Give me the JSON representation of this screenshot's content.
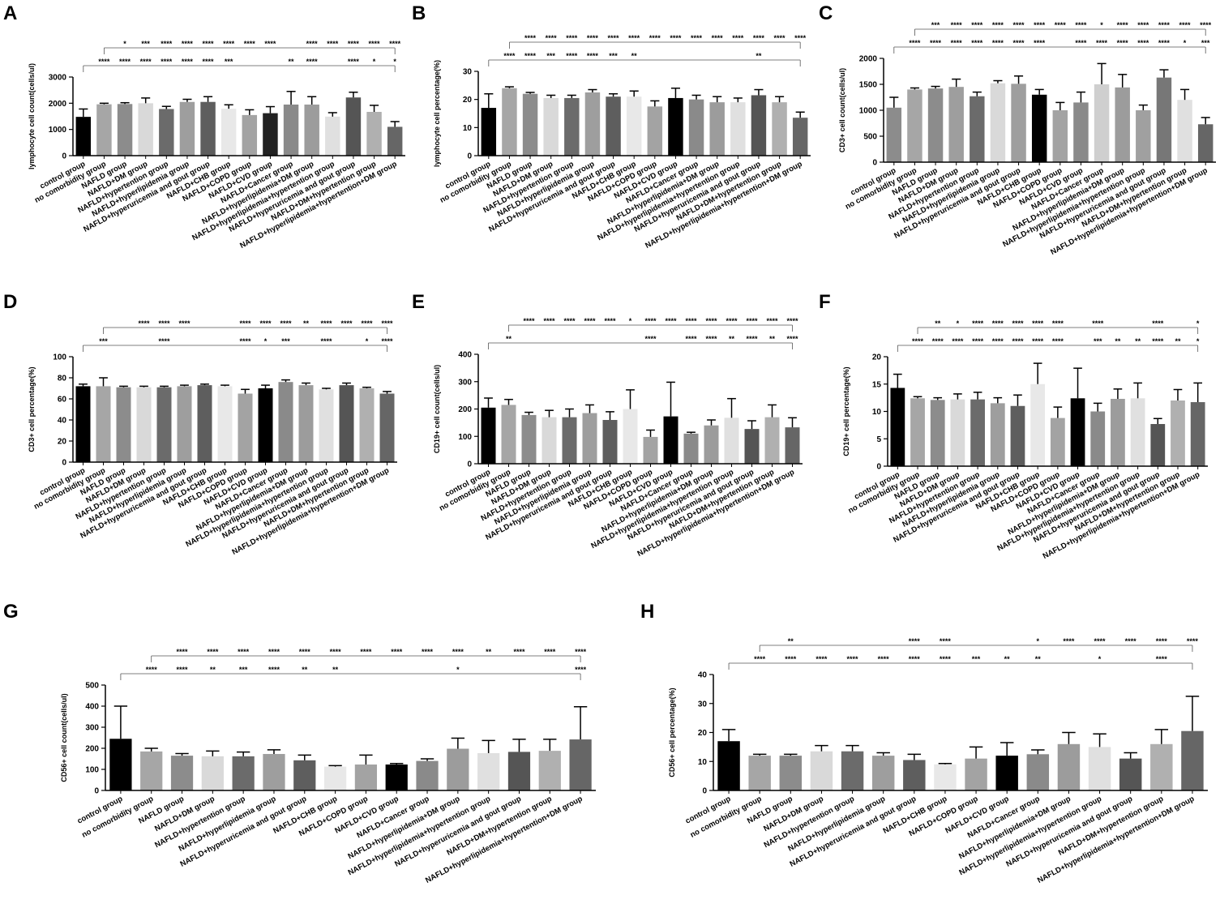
{
  "chart_data": [
    {
      "type": "bar",
      "panel": "A",
      "y_label": "lymphocyte cell count(cells/ul)",
      "categories": [
        "control group",
        "no comorbidity group",
        "NAFLD group",
        "NAFLD+DM group",
        "NAFLD+hypertention group",
        "NAFLD+hyperlipidemia group",
        "NAFLD+hyperuricemia and gout group",
        "NAFLD+CHB group",
        "NAFLD+COPD group",
        "NAFLD+CVD group",
        "NAFLD+Cancer group",
        "NAFLD+hyperlipidemia+DM group",
        "NAFLD+hyperlipidemia+hypertention group",
        "NAFLD+hyperuricemia and gout group",
        "NAFLD+DM+hypertention group",
        "NAFLD+hyperlipidemia+hypertention+DM group"
      ],
      "values": [
        1480,
        1960,
        1970,
        2000,
        1780,
        2050,
        2050,
        1790,
        1550,
        1620,
        1950,
        1950,
        1490,
        2220,
        1670,
        1100
      ],
      "errors": [
        300,
        40,
        50,
        200,
        100,
        100,
        200,
        150,
        200,
        250,
        500,
        300,
        150,
        200,
        250,
        200
      ],
      "colors": [
        "#000000",
        "#a6a6a6",
        "#8c8c8c",
        "#d9d9d9",
        "#6b6b6b",
        "#9e9e9e",
        "#5e5e5e",
        "#e8e8e8",
        "#a3a3a3",
        "#222222",
        "#8a8a8a",
        "#9c9c9c",
        "#e0e0e0",
        "#555555",
        "#b0b0b0",
        "#666666"
      ],
      "ylim": [
        0,
        3000
      ],
      "yticks": [
        0,
        1000,
        2000,
        3000
      ],
      "significance": [
        [
          null,
          "****",
          "****",
          "****",
          "****",
          "****",
          "****",
          "***",
          null,
          null,
          "**",
          "****",
          null,
          "****",
          "*",
          "*"
        ],
        [
          null,
          null,
          "*",
          "***",
          "****",
          "****",
          "****",
          "****",
          "****",
          "****",
          null,
          "****",
          "****",
          "****",
          "****",
          "****"
        ]
      ]
    },
    {
      "type": "bar",
      "panel": "B",
      "y_label": "lymphocyte cell percentage(%)",
      "categories": [
        "control group",
        "no comorbidity group",
        "NAFLD group",
        "NAFLD+DM group",
        "NAFLD+hypertention group",
        "NAFLD+hyperlipidemia group",
        "NAFLD+hyperuricemia and gout group",
        "NAFLD+CHB group",
        "NAFLD+COPD group",
        "NAFLD+CVD group",
        "NAFLD+Cancer group",
        "NAFLD+hyperlipidemia+DM group",
        "NAFLD+hyperlipidemia+hypertention group",
        "NAFLD+hyperuricemia and gout group",
        "NAFLD+DM+hypertention group",
        "NAFLD+hyperlipidemia+hypertention+DM group"
      ],
      "values": [
        17,
        24,
        22,
        20.5,
        20.5,
        22.5,
        21,
        21,
        17.5,
        20.5,
        20,
        19,
        19,
        21.5,
        19,
        13.5
      ],
      "errors": [
        5,
        0.5,
        0.5,
        1,
        1,
        1,
        1,
        2,
        2,
        3.5,
        1.5,
        2,
        1.5,
        2,
        2,
        2
      ],
      "colors": [
        "#000000",
        "#a6a6a6",
        "#8c8c8c",
        "#d9d9d9",
        "#6b6b6b",
        "#9e9e9e",
        "#5e5e5e",
        "#e8e8e8",
        "#a3a3a3",
        "#000000",
        "#8a8a8a",
        "#9c9c9c",
        "#e0e0e0",
        "#555555",
        "#b0b0b0",
        "#666666"
      ],
      "ylim": [
        0,
        30
      ],
      "yticks": [
        0,
        10,
        20,
        30
      ],
      "significance": [
        [
          null,
          "****",
          "****",
          "***",
          "****",
          "****",
          "***",
          "**",
          null,
          null,
          null,
          null,
          null,
          "**",
          null,
          null
        ],
        [
          null,
          null,
          "****",
          "****",
          "****",
          "****",
          "****",
          "****",
          "****",
          "****",
          "****",
          "****",
          "****",
          "****",
          "****",
          "****"
        ]
      ]
    },
    {
      "type": "bar",
      "panel": "C",
      "y_label": "CD3+ cell count(cells/ul)",
      "categories": [
        "control group",
        "no comorbidity group",
        "NAFLD group",
        "NAFLD+DM group",
        "NAFLD+hypertention group",
        "NAFLD+hyperlipidemia group",
        "NAFLD+hyperuricemia and gout group",
        "NAFLD+CHB group",
        "NAFLD+COPD group",
        "NAFLD+CVD group",
        "NAFLD+Cancer group",
        "NAFLD+hyperlipidemia+DM group",
        "NAFLD+hyperlipidemia+hypertention group",
        "NAFLD+hyperuricemia and gout group",
        "NAFLD+DM+hypertention group",
        "NAFLD+hyperlipidemia+hypertention+DM group"
      ],
      "values": [
        1050,
        1400,
        1420,
        1450,
        1270,
        1520,
        1510,
        1300,
        1000,
        1150,
        1500,
        1440,
        1000,
        1630,
        1200,
        730
      ],
      "errors": [
        200,
        30,
        40,
        150,
        80,
        50,
        150,
        100,
        150,
        200,
        400,
        250,
        100,
        150,
        200,
        130
      ],
      "colors": [
        "#8c8c8c",
        "#a6a6a6",
        "#8c8c8c",
        "#9e9e9e",
        "#6b6b6b",
        "#d9d9d9",
        "#9e9e9e",
        "#000000",
        "#a3a3a3",
        "#8a8a8a",
        "#cfcfcf",
        "#9c9c9c",
        "#a0a0a0",
        "#777777",
        "#e0e0e0",
        "#666666"
      ],
      "ylim": [
        0,
        2000
      ],
      "yticks": [
        0,
        500,
        1000,
        1500,
        2000
      ],
      "significance": [
        [
          null,
          "****",
          "****",
          "****",
          "****",
          "****",
          "****",
          "****",
          null,
          "****",
          "****",
          "****",
          "****",
          "****",
          "*",
          "***"
        ],
        [
          null,
          null,
          "***",
          "****",
          "****",
          "****",
          "****",
          "****",
          "****",
          "****",
          "*",
          "****",
          "****",
          "****",
          "****",
          "****"
        ]
      ]
    },
    {
      "type": "bar",
      "panel": "D",
      "y_label": "CD3+ cell percentage(%)",
      "categories": [
        "control group",
        "no comorbidity group",
        "NAFLD group",
        "NAFLD+DM group",
        "NAFLD+hypertention group",
        "NAFLD+hyperlipidemia group",
        "NAFLD+hyperuricemia and gout group",
        "NAFLD+CHB group",
        "NAFLD+COPD group",
        "NAFLD+CVD group",
        "NAFLD+Cancer group",
        "NAFLD+hyperlipidemia+DM group",
        "NAFLD+hyperlipidemia+hypertention group",
        "NAFLD+hyperuricemia and gout group",
        "NAFLD+DM+hypertention group",
        "NAFLD+hyperlipidemia+hypertention+DM group"
      ],
      "values": [
        72,
        72,
        71,
        71,
        71,
        72,
        73,
        72,
        65,
        70,
        76,
        73,
        69,
        73,
        70,
        65
      ],
      "errors": [
        2,
        8,
        1,
        1,
        1,
        1,
        1,
        1,
        4,
        3,
        2,
        2,
        1,
        2,
        1,
        2
      ],
      "colors": [
        "#000000",
        "#a6a6a6",
        "#8c8c8c",
        "#d9d9d9",
        "#6b6b6b",
        "#9e9e9e",
        "#5e5e5e",
        "#e8e8e8",
        "#a3a3a3",
        "#000000",
        "#8a8a8a",
        "#9c9c9c",
        "#e0e0e0",
        "#555555",
        "#b0b0b0",
        "#666666"
      ],
      "ylim": [
        0,
        100
      ],
      "yticks": [
        0,
        20,
        40,
        60,
        80,
        100
      ],
      "significance": [
        [
          null,
          "***",
          null,
          null,
          "****",
          null,
          null,
          null,
          "****",
          "*",
          "***",
          null,
          "****",
          null,
          "*",
          "****"
        ],
        [
          null,
          null,
          null,
          "****",
          "****",
          "****",
          null,
          null,
          "****",
          "****",
          "****",
          "**",
          "****",
          "****",
          "****",
          "****"
        ]
      ]
    },
    {
      "type": "bar",
      "panel": "E",
      "y_label": "CD19+ cell count(cells/ul)",
      "categories": [
        "control group",
        "no comorbidity group",
        "NAFLD group",
        "NAFLD+DM group",
        "NAFLD+hypertention group",
        "NAFLD+hyperlipidemia group",
        "NAFLD+hyperuricemia and gout group",
        "NAFLD+CHB group",
        "NAFLD+COPD group",
        "NAFLD+CVD group",
        "NAFLD+Cancer group",
        "NAFLD+hyperlipidemia+DM group",
        "NAFLD+hyperlipidemia+hypertention group",
        "NAFLD+hyperuricemia and gout group",
        "NAFLD+DM+hypertention group",
        "NAFLD+hyperlipidemia+hypertention+DM group"
      ],
      "values": [
        205,
        215,
        178,
        170,
        170,
        185,
        160,
        200,
        98,
        173,
        110,
        140,
        168,
        127,
        170,
        133
      ],
      "errors": [
        35,
        20,
        10,
        25,
        30,
        30,
        30,
        70,
        25,
        125,
        5,
        20,
        70,
        30,
        45,
        35
      ],
      "colors": [
        "#000000",
        "#a6a6a6",
        "#8c8c8c",
        "#d9d9d9",
        "#6b6b6b",
        "#9e9e9e",
        "#5e5e5e",
        "#e8e8e8",
        "#a3a3a3",
        "#000000",
        "#8a8a8a",
        "#9c9c9c",
        "#e0e0e0",
        "#555555",
        "#b0b0b0",
        "#666666"
      ],
      "ylim": [
        0,
        400
      ],
      "yticks": [
        0,
        100,
        200,
        300,
        400
      ],
      "significance": [
        [
          null,
          "**",
          null,
          null,
          null,
          null,
          null,
          null,
          "****",
          null,
          "****",
          "****",
          "**",
          "****",
          "**",
          "****"
        ],
        [
          null,
          null,
          "****",
          "****",
          "****",
          "****",
          "****",
          "*",
          "****",
          "****",
          "****",
          "****",
          "****",
          "****",
          "****",
          "****"
        ]
      ]
    },
    {
      "type": "bar",
      "panel": "F",
      "y_label": "CD19+ cell percentage(%)",
      "categories": [
        "control group",
        "no comorbidity group",
        "NAFLD group",
        "NAFLD+DM group",
        "NAFLD+hypertention group",
        "NAFLD+hyperlipidemia group",
        "NAFLD+hyperuricemia and gout group",
        "NAFLD+CHB group",
        "NAFLD+COPD group",
        "NAFLD+CVD group",
        "NAFLD+Cancer group",
        "NAFLD+hyperlipidemia+DM group",
        "NAFLD+hyperlipidemia+hypertention group",
        "NAFLD+hyperuricemia and gout group",
        "NAFLD+DM+hypertention group",
        "NAFLD+hyperlipidemia+hypertention+DM group"
      ],
      "values": [
        14.3,
        12.4,
        12.1,
        12.2,
        12.2,
        11.5,
        11,
        15,
        8.8,
        12.4,
        10,
        12.3,
        12.4,
        7.7,
        12,
        11.7
      ],
      "errors": [
        2.5,
        0.3,
        0.4,
        1,
        1.3,
        1,
        2,
        3.8,
        2,
        5.5,
        1.5,
        1.8,
        2.8,
        1,
        2,
        3.5
      ],
      "colors": [
        "#000000",
        "#a6a6a6",
        "#8c8c8c",
        "#d9d9d9",
        "#6b6b6b",
        "#9e9e9e",
        "#5e5e5e",
        "#e8e8e8",
        "#a3a3a3",
        "#000000",
        "#8a8a8a",
        "#9c9c9c",
        "#e0e0e0",
        "#555555",
        "#b0b0b0",
        "#666666"
      ],
      "ylim": [
        0,
        20
      ],
      "yticks": [
        0,
        5,
        10,
        15,
        20
      ],
      "significance": [
        [
          null,
          "****",
          "****",
          "****",
          "****",
          "****",
          "****",
          "****",
          "****",
          null,
          "***",
          "**",
          "**",
          "****",
          "**",
          "*"
        ],
        [
          null,
          null,
          "**",
          "*",
          "****",
          "****",
          "****",
          "****",
          "****",
          null,
          "****",
          null,
          null,
          "****",
          null,
          "*"
        ]
      ]
    },
    {
      "type": "bar",
      "panel": "G",
      "y_label": "CD56+ cell count(cells/ul)",
      "categories": [
        "control group",
        "no comorbidity group",
        "NAFLD group",
        "NAFLD+DM group",
        "NAFLD+hypertention group",
        "NAFLD+hyperlipidemia group",
        "NAFLD+hyperuricemia and gout group",
        "NAFLD+CHB group",
        "NAFLD+COPD group",
        "NAFLD+CVD group",
        "NAFLD+Cancer group",
        "NAFLD+hyperlipidemia+DM group",
        "NAFLD+hyperlipidemia+hypertention group",
        "NAFLD+hyperuricemia and gout group",
        "NAFLD+DM+hypertention group",
        "NAFLD+hyperlipidemia+hypertention+DM group"
      ],
      "values": [
        245,
        185,
        165,
        162,
        162,
        173,
        143,
        113,
        123,
        123,
        140,
        198,
        177,
        183,
        188,
        242
      ],
      "errors": [
        155,
        15,
        10,
        25,
        20,
        20,
        25,
        5,
        45,
        5,
        10,
        50,
        60,
        60,
        55,
        155
      ],
      "colors": [
        "#000000",
        "#a6a6a6",
        "#8c8c8c",
        "#d9d9d9",
        "#6b6b6b",
        "#9e9e9e",
        "#5e5e5e",
        "#e8e8e8",
        "#a3a3a3",
        "#000000",
        "#8a8a8a",
        "#9c9c9c",
        "#e0e0e0",
        "#555555",
        "#b0b0b0",
        "#666666"
      ],
      "ylim": [
        0,
        500
      ],
      "yticks": [
        0,
        100,
        200,
        300,
        400,
        500
      ],
      "significance": [
        [
          null,
          "****",
          "****",
          "**",
          "***",
          "****",
          "**",
          "**",
          null,
          null,
          null,
          "*",
          null,
          null,
          null,
          "****"
        ],
        [
          null,
          null,
          "****",
          "****",
          "****",
          "****",
          "****",
          "****",
          "****",
          "****",
          "****",
          "****",
          "**",
          "****",
          "****",
          "****"
        ]
      ]
    },
    {
      "type": "bar",
      "panel": "H",
      "y_label": "CD56+ cell percentage(%)",
      "categories": [
        "control group",
        "no comorbidity group",
        "NAFLD group",
        "NAFLD+DM group",
        "NAFLD+hypertention group",
        "NAFLD+hyperlipidemia group",
        "NAFLD+hyperuricemia and gout group",
        "NAFLD+CHB group",
        "NAFLD+COPD group",
        "NAFLD+CVD group",
        "NAFLD+Cancer group",
        "NAFLD+hyperlipidemia+DM group",
        "NAFLD+hyperlipidemia+hypertention group",
        "NAFLD+hyperuricemia and gout group",
        "NAFLD+DM+hypertention group",
        "NAFLD+hyperlipidemia+hypertention+DM group"
      ],
      "values": [
        17,
        12,
        12,
        13.5,
        13.5,
        12,
        10.5,
        9,
        11,
        12,
        12.5,
        16,
        15,
        11,
        16,
        20.5
      ],
      "errors": [
        4,
        0.5,
        0.5,
        2,
        2,
        1,
        2,
        0.3,
        4,
        4.5,
        1.5,
        4,
        4.5,
        2,
        5,
        12
      ],
      "colors": [
        "#000000",
        "#a6a6a6",
        "#8c8c8c",
        "#d9d9d9",
        "#6b6b6b",
        "#9e9e9e",
        "#5e5e5e",
        "#e8e8e8",
        "#a3a3a3",
        "#000000",
        "#8a8a8a",
        "#9c9c9c",
        "#e0e0e0",
        "#555555",
        "#b0b0b0",
        "#666666"
      ],
      "ylim": [
        0,
        40
      ],
      "yticks": [
        0,
        10,
        20,
        30,
        40
      ],
      "significance": [
        [
          null,
          "****",
          "****",
          "****",
          "****",
          "****",
          "****",
          "****",
          "***",
          "**",
          "**",
          null,
          "*",
          null,
          "****",
          null
        ],
        [
          null,
          null,
          "**",
          null,
          null,
          null,
          "****",
          "****",
          null,
          null,
          "*",
          "****",
          "****",
          "****",
          "****",
          "****"
        ]
      ]
    }
  ]
}
